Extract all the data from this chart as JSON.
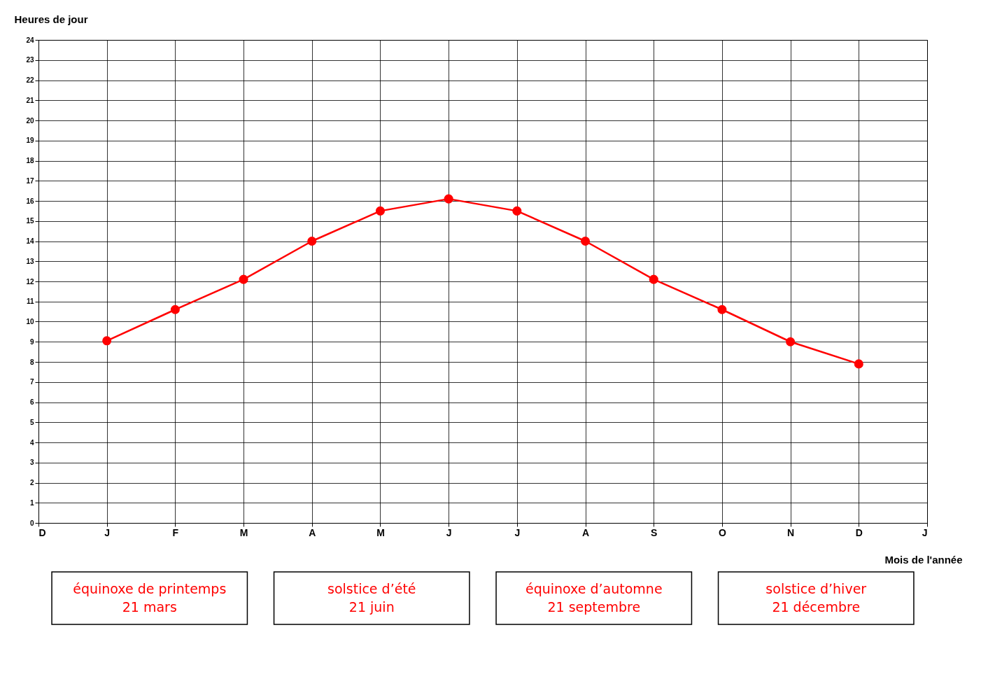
{
  "chart_data": {
    "type": "line",
    "xlabel": "Mois de l'année",
    "ylabel": "Heures de jour",
    "categories": [
      "D",
      "J",
      "F",
      "M",
      "A",
      "M",
      "J",
      "J",
      "A",
      "S",
      "O",
      "N",
      "D",
      "J"
    ],
    "series": [
      {
        "color": "#ff0000",
        "values": [
          null,
          9.05,
          10.6,
          12.1,
          14.0,
          15.5,
          16.1,
          15.5,
          14.0,
          12.1,
          10.6,
          9.0,
          7.9,
          null
        ]
      }
    ],
    "ylim": [
      0,
      24
    ],
    "yticks": [
      0,
      1,
      2,
      3,
      4,
      5,
      6,
      7,
      8,
      9,
      10,
      11,
      12,
      13,
      14,
      15,
      16,
      17,
      18,
      19,
      20,
      21,
      22,
      23,
      24
    ],
    "grid": true,
    "marker": "circle",
    "line_style": "solid",
    "annotations": [
      "équinoxe de printemps\n21 mars",
      "solstice d’été\n21 juin",
      "équinoxe d’automne\n21 septembre",
      "solstice d’hiver\n21 décembre"
    ]
  }
}
